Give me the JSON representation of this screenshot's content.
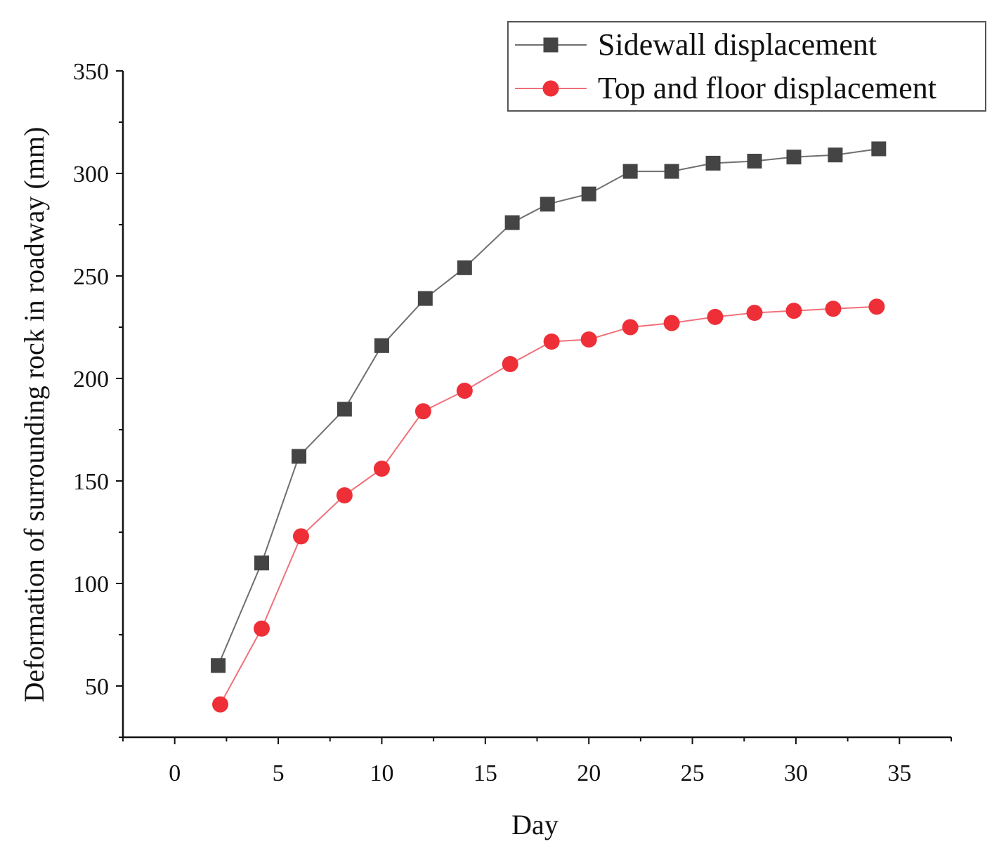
{
  "chart_data": {
    "type": "line",
    "title": "",
    "xlabel": "Day",
    "ylabel": "Deformation of surrounding rock in roadway (mm)",
    "xlim": [
      -2.5,
      37.5
    ],
    "ylim": [
      25,
      350
    ],
    "xticks": [
      0,
      5,
      10,
      15,
      20,
      25,
      30,
      35
    ],
    "yticks": [
      50,
      100,
      150,
      200,
      250,
      300,
      350
    ],
    "grid": false,
    "legend_position": "top-right",
    "series": [
      {
        "name": "Sidewall displacement",
        "marker": "square",
        "color": "#444444",
        "line_color": "#6f6f6f",
        "x": [
          2.1,
          4.2,
          6.0,
          8.2,
          10.0,
          12.1,
          14.0,
          16.3,
          18.0,
          20.0,
          22.0,
          24.0,
          26.0,
          28.0,
          29.9,
          31.9,
          34.0
        ],
        "y": [
          60,
          110,
          162,
          185,
          216,
          239,
          254,
          276,
          285,
          290,
          301,
          301,
          305,
          306,
          308,
          309,
          312
        ]
      },
      {
        "name": "Top and floor displacement",
        "marker": "circle",
        "color": "#ee2f37",
        "line_color": "#f0707a",
        "x": [
          2.2,
          4.2,
          6.1,
          8.2,
          10.0,
          12.0,
          14.0,
          16.2,
          18.2,
          20.0,
          22.0,
          24.0,
          26.1,
          28.0,
          29.9,
          31.8,
          33.9
        ],
        "y": [
          41,
          78,
          123,
          143,
          156,
          184,
          194,
          207,
          218,
          219,
          225,
          227,
          230,
          232,
          233,
          234,
          235
        ]
      }
    ]
  }
}
